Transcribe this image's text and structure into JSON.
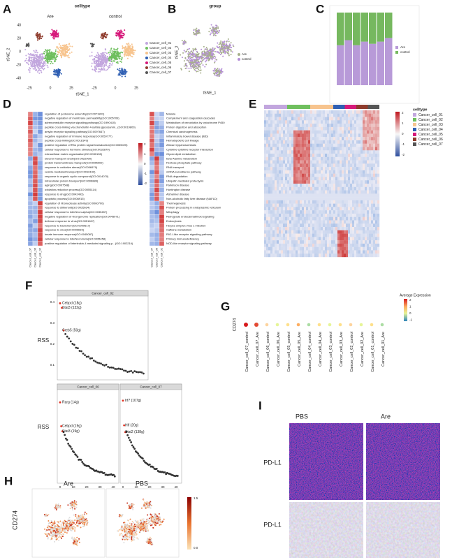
{
  "panel_labels": [
    "A",
    "B",
    "C",
    "D",
    "E",
    "F",
    "G",
    "H",
    "I"
  ],
  "a": {
    "title": "celltype",
    "groups": [
      "Are",
      "control"
    ],
    "x_label": "tSNE_1",
    "y_label": "tSNE_2",
    "x_ticks": [
      "-25",
      "0",
      "25"
    ],
    "y_ticks": [
      "40",
      "20",
      "0",
      "-20",
      "-40"
    ],
    "legend": [
      {
        "name": "Cancer_cell_01",
        "color": "#c2a6de"
      },
      {
        "name": "Cancer_cell_02",
        "color": "#6fbf5e"
      },
      {
        "name": "Cancer_cell_03",
        "color": "#f7c48e"
      },
      {
        "name": "Cancer_cell_04",
        "color": "#2f5fb3"
      },
      {
        "name": "Cancer_cell_05",
        "color": "#d6197a"
      },
      {
        "name": "Cancer_cell_06",
        "color": "#8e3b2c"
      },
      {
        "name": "Cancer_cell_07",
        "color": "#555555"
      }
    ]
  },
  "b": {
    "title": "group",
    "x_label": "tSNE_1",
    "y_label": "tSNE_2",
    "legend": [
      {
        "name": "Are",
        "color": "#a7b08c"
      },
      {
        "name": "control",
        "color": "#b58fd8"
      }
    ]
  },
  "c": {
    "legend": [
      {
        "name": "Are",
        "color": "#b89ad8"
      },
      {
        "name": "control",
        "color": "#76b85f"
      }
    ],
    "are_proportions": [
      55,
      62,
      55,
      60,
      57,
      60,
      65
    ]
  },
  "d": {
    "go_terms": [
      "regulation of podosome assembly(GO:0071801)",
      "negative regulation of membrane permeability(GO:1905709)",
      "adrenomedullin receptor signaling pathway(GO:1990410)",
      "peptide cross-linking via chondroitin 4-sulfate glycosamin...(GO:0019800)",
      "amylin receptor signaling pathway(GO:0097647)",
      "negative regulation of immune response(GO:0050777)",
      "peptide cross-linking(GO:0018149)",
      "positive regulation of Rho protein signal transduction(GO:0035025)",
      "cellular response to hormone stimulus(GO:0032870)",
      "extracellular matrix organization(GO:0030198)",
      "electron transport chain(GO:0022900)",
      "protein transmembrane transport(GO:0065002)",
      "response to oxidative stress(GO:0006979)",
      "vesicle-mediated transport(GO:0016192)",
      "response to organic cyclic compound(GO:0014070)",
      "intracellular protein transport(GO:0006886)",
      "aging(GO:0007568)",
      "oxidation-reduction process(GO:0055114)",
      "response to drug(GO:0042493)",
      "apoptotic process(GO:0006915)",
      "regulation of ribonuclease activity(GO:0060700)",
      "response to stilbenoid(GO:0035634)",
      "cellular response to interferon-alpha(GO:0035457)",
      "negative regulation of viral genome replication(GO:0045071)",
      "defense response to virus(GO:0051607)",
      "response to bacterium(GO:0009617)",
      "response to virus(GO:0009615)",
      "innate immune response(GO:0045087)",
      "cellular response to interferon-beta(GO:0035458)",
      "positive regulation of interleukin-4 mediated signaling p...(GO:1902216)"
    ],
    "kegg_terms": [
      "Malaria",
      "Complement and coagulation cascades",
      "Metabolism of xenobiotics by cytochrome P450",
      "Protein digestion and absorption",
      "Chemical carcinogenesis",
      "Inflammatory bowel disease (IBD)",
      "Hematopoietic cell lineage",
      "African trypanosomiasis",
      "Cytokine-cytokine receptor interaction",
      "Glycerolipid metabolism",
      "beta-Alanine metabolism",
      "Pentose phosphate pathway",
      "RNA transport",
      "mRNA surveillance pathway",
      "RNA degradation",
      "Ubiquitin mediated proteolysis",
      "Parkinson disease",
      "Huntington disease",
      "Alzheimer disease",
      "Non-alcoholic fatty liver disease (NAFLD)",
      "Thermogenesis",
      "Protein processing in endoplasmic reticulum",
      "Mitophagy",
      "Retrograde endocannabinoid signaling",
      "Endocytosis",
      "Herpes simplex virus 1 infection",
      "Caffeine metabolism",
      "RIG-I-like receptor signaling pathway",
      "Primary immunodeficiency",
      "NOD-like receptor signaling pathway"
    ],
    "columns": [
      "Cancer_cell_07",
      "Cancer_cell_06",
      "Cancer_cell_02"
    ],
    "scale_ticks": [
      "2",
      "1",
      "0",
      "-1",
      "-2"
    ]
  },
  "e": {
    "legend_title": "celltype",
    "scale_ticks": [
      "2",
      "1",
      "0",
      "-1",
      "-2"
    ]
  },
  "f": {
    "y_label": "RSS",
    "y_ticks": [
      "0.4",
      "0.3",
      "0.2",
      "0.1"
    ],
    "x_ticks": [
      "0",
      "10",
      "20",
      "30",
      "40"
    ],
    "panels": [
      {
        "title": "Cancer_cell_02",
        "labels": [
          "Cebpd (18g)",
          "Stat3 (132g)",
          "Creb5 (50g)"
        ]
      },
      {
        "title": "Cancer_cell_06",
        "labels": [
          "Rarg (14g)",
          "Cebpd (19g)",
          "Stat3 (19g)"
        ]
      },
      {
        "title": "Cancer_cell_07",
        "labels": [
          "Irf7 (107g)",
          "Hlf (20g)",
          "Stat2 (138g)"
        ]
      }
    ]
  },
  "g": {
    "gene": "CD274",
    "legend_title": "Average Expression",
    "legend_ticks": [
      "2",
      "1",
      "0",
      "-1"
    ],
    "groups": [
      "Cancer_cell_07_control",
      "Cancer_cell_07_Are",
      "Cancer_cell_06_control",
      "Cancer_cell_06_Are",
      "Cancer_cell_05_control",
      "Cancer_cell_05_Are",
      "Cancer_cell_04_control",
      "Cancer_cell_04_Are",
      "Cancer_cell_03_control",
      "Cancer_cell_03_Are",
      "Cancer_cell_02_control",
      "Cancer_cell_02_Are",
      "Cancer_cell_01_control",
      "Cancer_cell_01_Are"
    ]
  },
  "h": {
    "gene": "CD274",
    "groups": [
      "Are",
      "PBS"
    ],
    "scale_ticks": [
      "1.5",
      "0.0"
    ]
  },
  "i": {
    "groups": [
      "PBS",
      "Are"
    ],
    "marker": "PD-L1"
  }
}
